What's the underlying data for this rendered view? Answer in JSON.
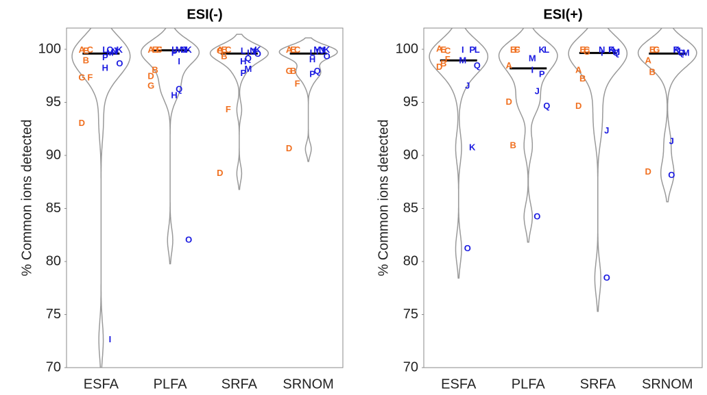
{
  "chart_data": [
    {
      "type": "violin",
      "title": "ESI(-)",
      "ylabel": "% Common ions detected",
      "ylim": [
        70,
        102
      ],
      "yticks": [
        70,
        75,
        80,
        85,
        90,
        95,
        100
      ],
      "categories": [
        "ESFA",
        "PLFA",
        "SRFA",
        "SRNOM"
      ],
      "points": [
        [
          {
            "label": "A",
            "value": 99.9,
            "color": "#f07020"
          },
          {
            "label": "B",
            "value": 98.9,
            "color": "#f07020"
          },
          {
            "label": "C",
            "value": 99.9,
            "color": "#f07020"
          },
          {
            "label": "D",
            "value": 93.0,
            "color": "#f07020"
          },
          {
            "label": "E",
            "value": 99.8,
            "color": "#f07020"
          },
          {
            "label": "F",
            "value": 97.3,
            "color": "#f07020"
          },
          {
            "label": "G",
            "value": 97.3,
            "color": "#f07020"
          },
          {
            "label": "H",
            "value": 98.2,
            "color": "#1a1ae0"
          },
          {
            "label": "I",
            "value": 72.6,
            "color": "#1a1ae0"
          },
          {
            "label": "J",
            "value": 99.8,
            "color": "#1a1ae0"
          },
          {
            "label": "K",
            "value": 99.9,
            "color": "#1a1ae0"
          },
          {
            "label": "L",
            "value": 99.9,
            "color": "#1a1ae0"
          },
          {
            "label": "M",
            "value": 99.6,
            "color": "#1a1ae0"
          },
          {
            "label": "N",
            "value": 99.7,
            "color": "#1a1ae0"
          },
          {
            "label": "O",
            "value": 98.6,
            "color": "#1a1ae0"
          },
          {
            "label": "P",
            "value": 99.2,
            "color": "#1a1ae0"
          },
          {
            "label": "Q",
            "value": 99.9,
            "color": "#1a1ae0"
          }
        ],
        [
          {
            "label": "A",
            "value": 99.9,
            "color": "#f07020"
          },
          {
            "label": "B",
            "value": 98.0,
            "color": "#f07020"
          },
          {
            "label": "C",
            "value": 99.9,
            "color": "#f07020"
          },
          {
            "label": "D",
            "value": 97.4,
            "color": "#f07020"
          },
          {
            "label": "E",
            "value": 99.9,
            "color": "#f07020"
          },
          {
            "label": "F",
            "value": 99.9,
            "color": "#f07020"
          },
          {
            "label": "G",
            "value": 96.5,
            "color": "#f07020"
          },
          {
            "label": "H",
            "value": 95.6,
            "color": "#1a1ae0"
          },
          {
            "label": "I",
            "value": 98.8,
            "color": "#1a1ae0"
          },
          {
            "label": "J",
            "value": 99.9,
            "color": "#1a1ae0"
          },
          {
            "label": "K",
            "value": 99.9,
            "color": "#1a1ae0"
          },
          {
            "label": "L",
            "value": 99.9,
            "color": "#1a1ae0"
          },
          {
            "label": "M",
            "value": 99.9,
            "color": "#1a1ae0"
          },
          {
            "label": "N",
            "value": 99.9,
            "color": "#1a1ae0"
          },
          {
            "label": "O",
            "value": 82.0,
            "color": "#1a1ae0"
          },
          {
            "label": "P",
            "value": 99.6,
            "color": "#1a1ae0"
          },
          {
            "label": "Q",
            "value": 96.2,
            "color": "#1a1ae0"
          }
        ],
        [
          {
            "label": "A",
            "value": 99.9,
            "color": "#f07020"
          },
          {
            "label": "B",
            "value": 99.3,
            "color": "#f07020"
          },
          {
            "label": "C",
            "value": 99.9,
            "color": "#f07020"
          },
          {
            "label": "D",
            "value": 88.3,
            "color": "#f07020"
          },
          {
            "label": "E",
            "value": 99.9,
            "color": "#f07020"
          },
          {
            "label": "F",
            "value": 94.3,
            "color": "#f07020"
          },
          {
            "label": "G",
            "value": 99.8,
            "color": "#f07020"
          },
          {
            "label": "H",
            "value": 98.8,
            "color": "#1a1ae0"
          },
          {
            "label": "I",
            "value": 99.6,
            "color": "#1a1ae0"
          },
          {
            "label": "J",
            "value": 99.7,
            "color": "#1a1ae0"
          },
          {
            "label": "K",
            "value": 99.9,
            "color": "#1a1ae0"
          },
          {
            "label": "L",
            "value": 99.8,
            "color": "#1a1ae0"
          },
          {
            "label": "M",
            "value": 98.1,
            "color": "#1a1ae0"
          },
          {
            "label": "N",
            "value": 99.8,
            "color": "#1a1ae0"
          },
          {
            "label": "O",
            "value": 99.5,
            "color": "#1a1ae0"
          },
          {
            "label": "P",
            "value": 97.7,
            "color": "#1a1ae0"
          },
          {
            "label": "Q",
            "value": 99.1,
            "color": "#1a1ae0"
          }
        ],
        [
          {
            "label": "A",
            "value": 99.9,
            "color": "#f07020"
          },
          {
            "label": "B",
            "value": 97.9,
            "color": "#f07020"
          },
          {
            "label": "C",
            "value": 99.9,
            "color": "#f07020"
          },
          {
            "label": "D",
            "value": 90.6,
            "color": "#f07020"
          },
          {
            "label": "E",
            "value": 99.9,
            "color": "#f07020"
          },
          {
            "label": "F",
            "value": 96.7,
            "color": "#f07020"
          },
          {
            "label": "G",
            "value": 97.9,
            "color": "#f07020"
          },
          {
            "label": "H",
            "value": 99.0,
            "color": "#1a1ae0"
          },
          {
            "label": "I",
            "value": 99.7,
            "color": "#1a1ae0"
          },
          {
            "label": "J",
            "value": 99.8,
            "color": "#1a1ae0"
          },
          {
            "label": "K",
            "value": 99.9,
            "color": "#1a1ae0"
          },
          {
            "label": "L",
            "value": 99.6,
            "color": "#1a1ae0"
          },
          {
            "label": "M",
            "value": 99.9,
            "color": "#1a1ae0"
          },
          {
            "label": "N",
            "value": 99.9,
            "color": "#1a1ae0"
          },
          {
            "label": "O",
            "value": 99.3,
            "color": "#1a1ae0"
          },
          {
            "label": "P",
            "value": 97.6,
            "color": "#1a1ae0"
          },
          {
            "label": "Q",
            "value": 97.9,
            "color": "#1a1ae0"
          }
        ]
      ]
    },
    {
      "type": "violin",
      "title": "ESI(+)",
      "ylabel": "% Common ions detected",
      "ylim": [
        70,
        102
      ],
      "yticks": [
        70,
        75,
        80,
        85,
        90,
        95,
        100
      ],
      "categories": [
        "ESFA",
        "PLFA",
        "SRFA",
        "SRNOM"
      ],
      "points": [
        [
          {
            "label": "A",
            "value": 100.0,
            "color": "#f07020"
          },
          {
            "label": "B",
            "value": 98.6,
            "color": "#f07020"
          },
          {
            "label": "C",
            "value": 99.8,
            "color": "#f07020"
          },
          {
            "label": "D",
            "value": 98.3,
            "color": "#f07020"
          },
          {
            "label": "E",
            "value": 99.9,
            "color": "#f07020"
          },
          {
            "label": "F",
            "value": 99.0,
            "color": "#f07020"
          },
          {
            "label": "I",
            "value": 99.9,
            "color": "#1a1ae0"
          },
          {
            "label": "J",
            "value": 96.5,
            "color": "#1a1ae0"
          },
          {
            "label": "K",
            "value": 90.7,
            "color": "#1a1ae0"
          },
          {
            "label": "L",
            "value": 99.9,
            "color": "#1a1ae0"
          },
          {
            "label": "M",
            "value": 98.9,
            "color": "#1a1ae0"
          },
          {
            "label": "O",
            "value": 81.2,
            "color": "#1a1ae0"
          },
          {
            "label": "P",
            "value": 99.9,
            "color": "#1a1ae0"
          },
          {
            "label": "Q",
            "value": 98.4,
            "color": "#1a1ae0"
          }
        ],
        [
          {
            "label": "A",
            "value": 98.4,
            "color": "#f07020"
          },
          {
            "label": "B",
            "value": 90.9,
            "color": "#f07020"
          },
          {
            "label": "C",
            "value": 99.9,
            "color": "#f07020"
          },
          {
            "label": "D",
            "value": 95.0,
            "color": "#f07020"
          },
          {
            "label": "E",
            "value": 99.9,
            "color": "#f07020"
          },
          {
            "label": "F",
            "value": 99.9,
            "color": "#f07020"
          },
          {
            "label": "I",
            "value": 98.0,
            "color": "#1a1ae0"
          },
          {
            "label": "J",
            "value": 96.0,
            "color": "#1a1ae0"
          },
          {
            "label": "K",
            "value": 99.9,
            "color": "#1a1ae0"
          },
          {
            "label": "L",
            "value": 99.9,
            "color": "#1a1ae0"
          },
          {
            "label": "M",
            "value": 99.1,
            "color": "#1a1ae0"
          },
          {
            "label": "O",
            "value": 84.2,
            "color": "#1a1ae0"
          },
          {
            "label": "P",
            "value": 97.6,
            "color": "#1a1ae0"
          },
          {
            "label": "Q",
            "value": 94.6,
            "color": "#1a1ae0"
          }
        ],
        [
          {
            "label": "A",
            "value": 98.0,
            "color": "#f07020"
          },
          {
            "label": "B",
            "value": 97.2,
            "color": "#f07020"
          },
          {
            "label": "C",
            "value": 99.9,
            "color": "#f07020"
          },
          {
            "label": "D",
            "value": 94.6,
            "color": "#f07020"
          },
          {
            "label": "E",
            "value": 99.9,
            "color": "#f07020"
          },
          {
            "label": "G",
            "value": 99.7,
            "color": "#f07020"
          },
          {
            "label": "I",
            "value": 99.6,
            "color": "#1a1ae0"
          },
          {
            "label": "J",
            "value": 92.3,
            "color": "#1a1ae0"
          },
          {
            "label": "K",
            "value": 99.9,
            "color": "#1a1ae0"
          },
          {
            "label": "M",
            "value": 99.7,
            "color": "#1a1ae0"
          },
          {
            "label": "N",
            "value": 99.9,
            "color": "#1a1ae0"
          },
          {
            "label": "O",
            "value": 78.4,
            "color": "#1a1ae0"
          },
          {
            "label": "P",
            "value": 99.9,
            "color": "#1a1ae0"
          },
          {
            "label": "Q",
            "value": 99.6,
            "color": "#1a1ae0"
          }
        ],
        [
          {
            "label": "A",
            "value": 98.9,
            "color": "#f07020"
          },
          {
            "label": "B",
            "value": 97.8,
            "color": "#f07020"
          },
          {
            "label": "C",
            "value": 99.9,
            "color": "#f07020"
          },
          {
            "label": "D",
            "value": 88.4,
            "color": "#f07020"
          },
          {
            "label": "E",
            "value": 99.9,
            "color": "#f07020"
          },
          {
            "label": "G",
            "value": 99.9,
            "color": "#f07020"
          },
          {
            "label": "J",
            "value": 91.3,
            "color": "#1a1ae0"
          },
          {
            "label": "K",
            "value": 99.9,
            "color": "#1a1ae0"
          },
          {
            "label": "L",
            "value": 99.8,
            "color": "#1a1ae0"
          },
          {
            "label": "M",
            "value": 99.6,
            "color": "#1a1ae0"
          },
          {
            "label": "O",
            "value": 88.1,
            "color": "#1a1ae0"
          },
          {
            "label": "P",
            "value": 99.9,
            "color": "#1a1ae0"
          },
          {
            "label": "Q",
            "value": 99.6,
            "color": "#1a1ae0"
          }
        ]
      ]
    }
  ]
}
